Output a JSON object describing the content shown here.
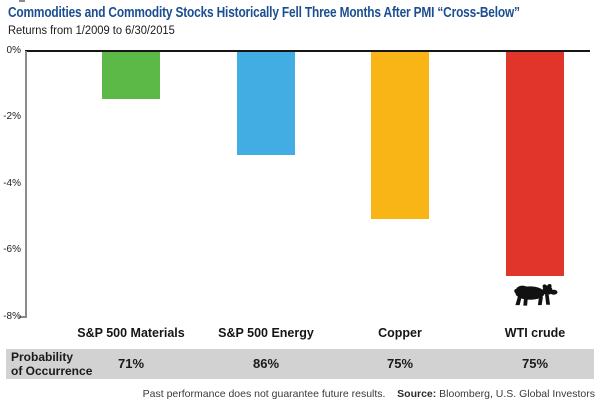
{
  "chart_data": {
    "type": "bar",
    "title": "Commodities and Commodity Stocks Historically Fell Three Months After PMI “Cross-Below”",
    "subtitle": "Returns from 1/2009 to 6/30/2015",
    "categories": [
      "S&P 500 Materials",
      "S&P 500 Energy",
      "Copper",
      "WTI crude"
    ],
    "values": [
      -1.4,
      -3.1,
      -5.0,
      -6.7
    ],
    "values_unit": "%",
    "ylabel": "",
    "xlabel": "",
    "ylim": [
      -8,
      0
    ],
    "yticks": [
      "0%",
      "-2%",
      "-4%",
      "-6%",
      "-8%"
    ],
    "grid": false,
    "legend": "none",
    "bar_colors": [
      "#5cb947",
      "#41ade3",
      "#f8b515",
      "#e1352b"
    ],
    "annotations": [
      {
        "icon": "bear-icon",
        "meaning": "bearish",
        "position": "below WTI crude bar"
      }
    ],
    "probability_row": {
      "label_line1": "Probability",
      "label_line2": "of Occurrence",
      "values": [
        "71%",
        "86%",
        "75%",
        "75%"
      ]
    }
  },
  "footer": {
    "disclaimer": "Past performance does not guarantee future results.",
    "source_label": "Source:",
    "source_text": "Bloomberg, U.S. Global Investors"
  },
  "colors": {
    "title_blue": "#1b4e8f",
    "axis_gray": "#8a8a8a",
    "band_gray": "#d2d2d2",
    "zero_line": "#151515",
    "bear_black": "#111111"
  }
}
